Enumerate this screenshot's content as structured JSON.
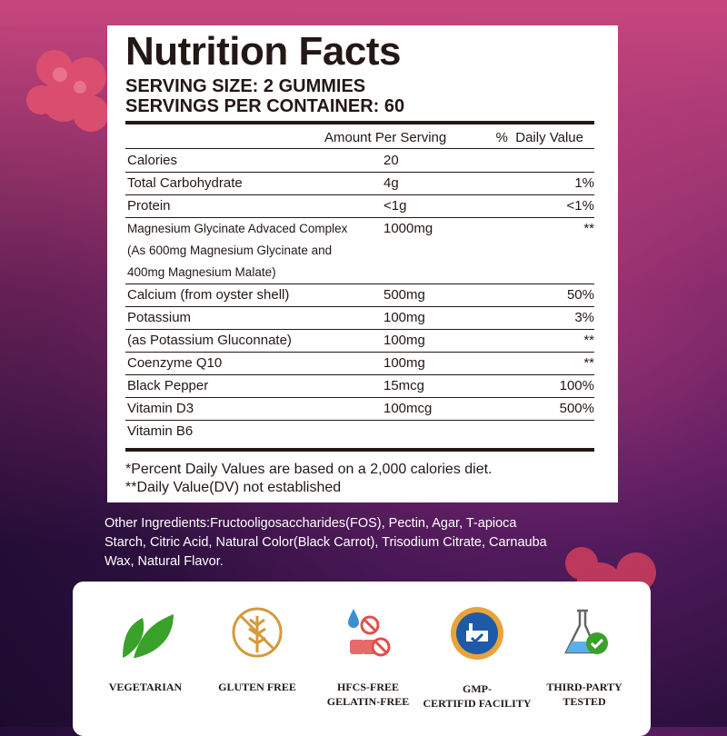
{
  "panel": {
    "title": "Nutrition Facts",
    "serving_size": "SERVING SIZE: 2 GUMMIES",
    "servings_per_container": "SERVINGS PER CONTAINER: 60",
    "columns": {
      "amount": "Amount Per Serving",
      "dv": "%  Daily Value"
    },
    "rows": [
      {
        "name": [
          "Calories"
        ],
        "amount": "20"
      },
      {
        "name": [
          "Total Carbohydrate"
        ],
        "amount": "4g",
        "dv": "1%"
      },
      {
        "name": [
          "Protein"
        ],
        "amount": "<1g",
        "dv": "<1%"
      },
      {
        "name": [
          "Magnesium Glycinate Advaced Complex",
          "(As 600mg Magnesium Glycinate and",
          "400mg Magnesium Malate)"
        ],
        "amount": "1000mg",
        "dv": "**"
      },
      {
        "name": [
          "Calcium (from oyster shell)"
        ],
        "amount": "500mg",
        "dv": "50%"
      },
      {
        "name": [
          "Potassium"
        ],
        "amount": "100mg",
        "dv": "3%"
      },
      {
        "name": [
          "(as Potassium Gluconnate)"
        ],
        "amount": "100mg",
        "dv": "**"
      },
      {
        "name": [
          "Coenzyme Q10"
        ],
        "amount": "100mg",
        "dv": "**"
      },
      {
        "name": [
          "Black Pepper"
        ],
        "amount": "15mcg",
        "dv": "100%"
      },
      {
        "name": [
          "Vitamin D3"
        ],
        "amount": "100mcg",
        "dv": "500%"
      },
      {
        "name": [
          "Vitamin B6"
        ]
      }
    ],
    "footnotes": [
      "*Percent Daily Values are based on a 2,000 calories diet.",
      "**Daily Value(DV) not established"
    ]
  },
  "other_ingredients": "Other Ingredients:Fructooligosaccharides(FOS), Pectin, Agar, T-apioca Starch, Citric Acid, Natural Color(Black Carrot), Trisodium Citrate, Carnauba Wax, Natural Flavor.",
  "badges": [
    {
      "label": [
        "VEGETARIAN"
      ]
    },
    {
      "label": [
        "GLUTEN FREE"
      ]
    },
    {
      "label": [
        "HFCS-FREE",
        "GELATIN-FREE"
      ]
    },
    {
      "label": [
        "GMP-",
        "CERTIFID FACILITY"
      ]
    },
    {
      "label": [
        "THIRD-PARTY",
        "TESTED"
      ]
    }
  ]
}
